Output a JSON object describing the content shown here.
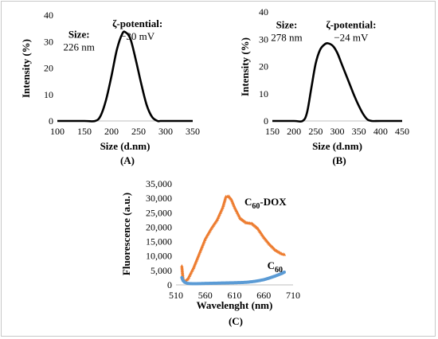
{
  "chart_data": [
    {
      "type": "line",
      "panel_label": "(A)",
      "xlabel": "Size (d.nm)",
      "ylabel": "Intensity (%)",
      "xlim": [
        100,
        350
      ],
      "ylim": [
        0,
        40
      ],
      "xticks": [
        "100",
        "150",
        "200",
        "250",
        "300",
        "350"
      ],
      "yticks": [
        "0",
        "10",
        "20",
        "30",
        "40"
      ],
      "series": [
        {
          "color": "#000000",
          "x": [
            100,
            150,
            170,
            180,
            190,
            200,
            210,
            220,
            226,
            235,
            245,
            255,
            265,
            275,
            285,
            290,
            300,
            350
          ],
          "y": [
            0,
            0,
            0,
            2,
            8,
            17,
            27,
            33,
            33.5,
            31,
            23,
            14,
            6,
            1.5,
            0,
            0,
            0,
            0
          ]
        }
      ],
      "annotations": [
        {
          "label": "Size:",
          "value": "226 nm",
          "x": 140,
          "y": 31.5
        },
        {
          "label": "ζ-potential:",
          "value": "−30 mV",
          "x": 248,
          "y": 35.5
        }
      ]
    },
    {
      "type": "line",
      "panel_label": "(B)",
      "xlabel": "Size (d.nm)",
      "ylabel": "Intensity (%)",
      "xlim": [
        150,
        450
      ],
      "ylim": [
        0,
        40
      ],
      "xticks": [
        "150",
        "200",
        "250",
        "300",
        "350",
        "400",
        "450"
      ],
      "yticks": [
        "0",
        "10",
        "20",
        "30",
        "40"
      ],
      "series": [
        {
          "color": "#000000",
          "x": [
            150,
            200,
            220,
            230,
            240,
            250,
            260,
            270,
            278,
            290,
            300,
            310,
            320,
            330,
            340,
            350,
            360,
            370,
            380,
            400,
            450
          ],
          "y": [
            0,
            0,
            0,
            3,
            12,
            21,
            26,
            28,
            28.5,
            27.5,
            25,
            21,
            17,
            13,
            9,
            5.5,
            2.5,
            0.5,
            0,
            0,
            0
          ]
        }
      ],
      "annotations": [
        {
          "label": "Size:",
          "value": "278 nm",
          "x": 183,
          "y": 34
        },
        {
          "label": "ζ-potential:",
          "value": "−24 mV",
          "x": 332,
          "y": 34
        }
      ]
    },
    {
      "type": "scatter",
      "panel_label": "(C)",
      "xlabel": "Wavelenght  (nm)",
      "ylabel": "Fluorescence  (a.u.)",
      "xlim": [
        510,
        710
      ],
      "ylim": [
        0,
        35000
      ],
      "xticks": [
        "510",
        "560",
        "610",
        "660",
        "710"
      ],
      "yticks": [
        "0",
        "5,000",
        "10,000",
        "15,000",
        "20,000",
        "25,000",
        "30,000",
        "35,000"
      ],
      "series": [
        {
          "name": "C60-DOX",
          "color": "#ed7d31",
          "marker": "triangle",
          "x": [
            520,
            522,
            525,
            530,
            540,
            550,
            560,
            570,
            580,
            590,
            595,
            600,
            605,
            610,
            620,
            630,
            640,
            650,
            660,
            670,
            680,
            690,
            695
          ],
          "y": [
            6500,
            2200,
            1200,
            2000,
            6000,
            11000,
            16000,
            19500,
            22500,
            27000,
            30500,
            30700,
            29500,
            27000,
            23000,
            21500,
            21200,
            19500,
            16500,
            14000,
            12000,
            10800,
            10500
          ]
        },
        {
          "name": "C60",
          "color": "#5b9bd5",
          "marker": "circle",
          "x": [
            520,
            522,
            525,
            530,
            540,
            550,
            560,
            570,
            580,
            590,
            600,
            610,
            620,
            630,
            640,
            650,
            660,
            670,
            680,
            690,
            695
          ],
          "y": [
            2500,
            1500,
            900,
            500,
            400,
            450,
            500,
            550,
            600,
            650,
            700,
            750,
            800,
            900,
            1100,
            1400,
            1800,
            2400,
            3100,
            3900,
            4400
          ]
        }
      ],
      "labels": [
        {
          "text": "C",
          "sub": "60",
          "rest": "-DOX",
          "x": 627,
          "y": 27500
        },
        {
          "text": "C",
          "sub": "60",
          "rest": "",
          "x": 666,
          "y": 5500
        }
      ]
    }
  ]
}
